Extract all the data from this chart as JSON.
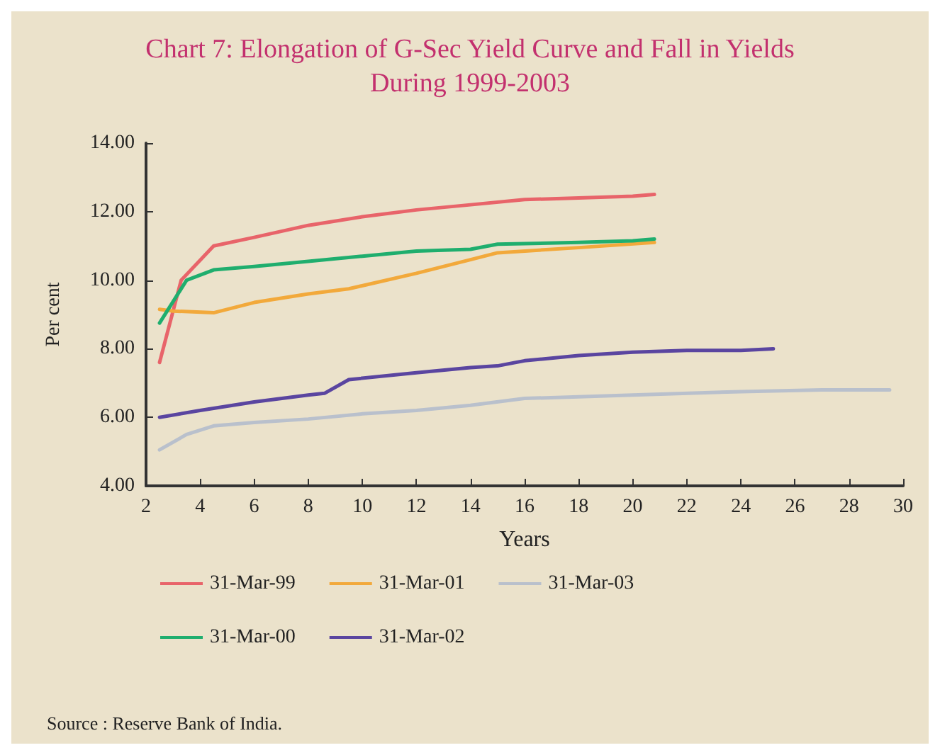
{
  "chart_data": {
    "type": "line",
    "title": "Chart 7: Elongation of G-Sec Yield Curve and Fall in Yields\nDuring 1999-2003",
    "xlabel": "Years",
    "ylabel": "Per cent",
    "annotations": [
      "Source : Reserve Bank of India."
    ],
    "xlim": [
      2,
      30
    ],
    "xticks": [
      2,
      4,
      6,
      8,
      10,
      12,
      14,
      16,
      18,
      20,
      22,
      24,
      26,
      28,
      30
    ],
    "ylim": [
      4,
      14
    ],
    "yticks": [
      {
        "value": 4,
        "label": "4.00"
      },
      {
        "value": 6,
        "label": "6.00"
      },
      {
        "value": 8,
        "label": "8.00"
      },
      {
        "value": 10,
        "label": "10.00"
      },
      {
        "value": 12,
        "label": "12.00"
      },
      {
        "value": 14,
        "label": "14.00"
      }
    ],
    "grid": false,
    "legend": "bottom",
    "marker": "none",
    "line_style": "solid",
    "series": [
      {
        "name": "31-Mar-99",
        "color": "#e8646a",
        "x": [
          2.5,
          3.3,
          4.5,
          6,
          8,
          10,
          12,
          14,
          16,
          18,
          20,
          20.8
        ],
        "values": [
          7.6,
          10.0,
          11.0,
          11.25,
          11.6,
          11.85,
          12.05,
          12.2,
          12.35,
          12.4,
          12.45,
          12.5
        ]
      },
      {
        "name": "31-Mar-01",
        "color": "#f2a93b",
        "x": [
          2.5,
          3,
          4.5,
          6,
          8,
          9.5,
          12,
          14,
          15,
          18,
          20.8
        ],
        "values": [
          9.15,
          9.1,
          9.05,
          9.35,
          9.6,
          9.75,
          10.2,
          10.6,
          10.8,
          10.95,
          11.1
        ]
      },
      {
        "name": "31-Mar-03",
        "color": "#b9c0cc",
        "x": [
          2.5,
          3.5,
          4.5,
          6,
          8,
          10,
          12,
          14,
          16,
          18,
          20,
          24,
          27,
          29.5
        ],
        "values": [
          5.05,
          5.5,
          5.75,
          5.85,
          5.95,
          6.1,
          6.2,
          6.35,
          6.55,
          6.6,
          6.65,
          6.75,
          6.8,
          6.8
        ]
      },
      {
        "name": "31-Mar-00",
        "color": "#1fae6e",
        "x": [
          2.5,
          3.5,
          4.5,
          6,
          8,
          10,
          12,
          14,
          15,
          18,
          20,
          20.8
        ],
        "values": [
          8.75,
          10.0,
          10.3,
          10.4,
          10.55,
          10.7,
          10.85,
          10.9,
          11.05,
          11.1,
          11.15,
          11.2
        ]
      },
      {
        "name": "31-Mar-02",
        "color": "#5a45a0",
        "x": [
          2.5,
          4,
          6,
          8,
          8.6,
          9.5,
          12,
          14,
          15,
          16,
          18,
          20,
          22,
          24,
          25.2
        ],
        "values": [
          6.0,
          6.2,
          6.45,
          6.65,
          6.7,
          7.1,
          7.3,
          7.45,
          7.5,
          7.65,
          7.8,
          7.9,
          7.95,
          7.95,
          8.0
        ]
      }
    ]
  }
}
